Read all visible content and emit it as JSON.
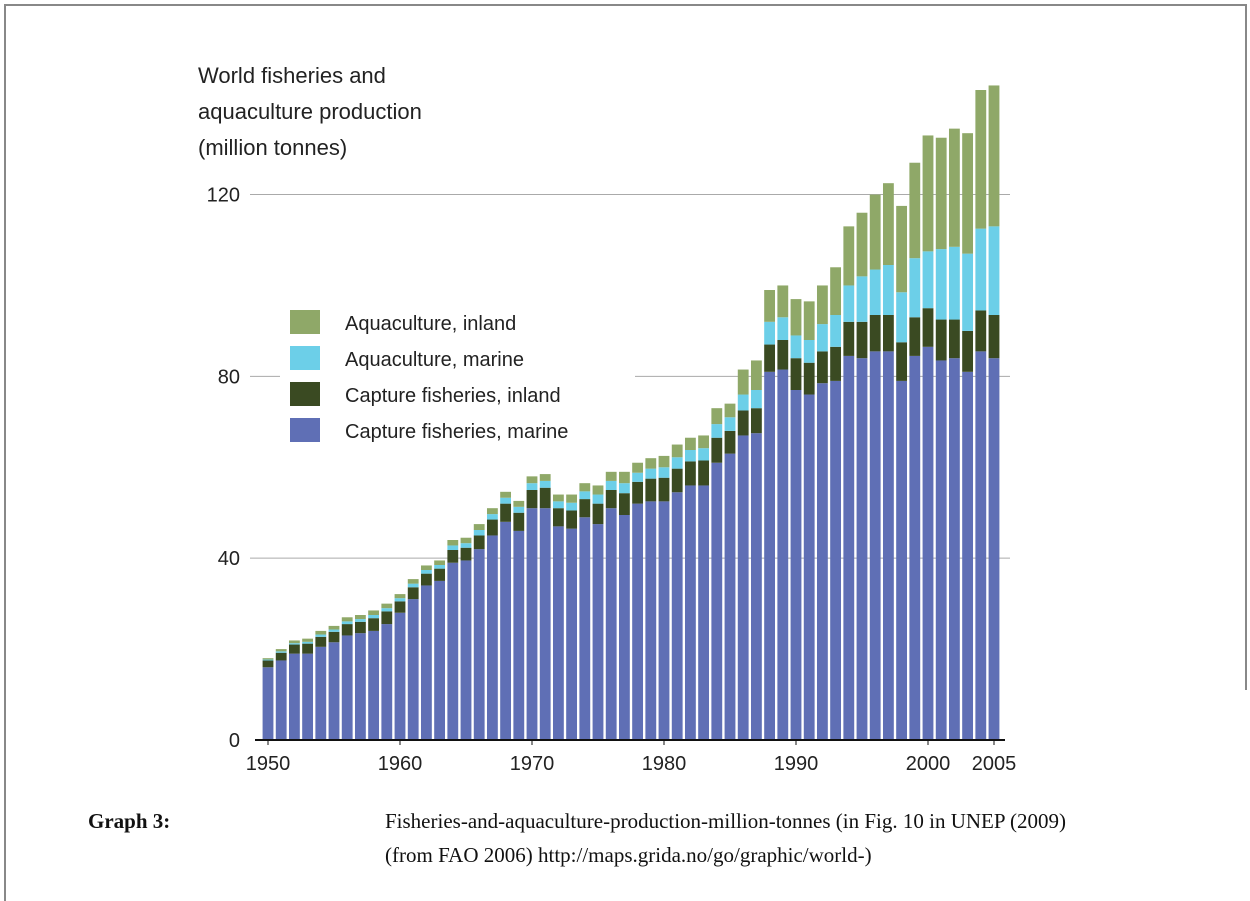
{
  "chart_data": {
    "type": "stacked_bar",
    "title": [
      "World fisheries and",
      "aquaculture production",
      "(million tonnes)"
    ],
    "x": [
      1950,
      1951,
      1952,
      1953,
      1954,
      1955,
      1956,
      1957,
      1958,
      1959,
      1960,
      1961,
      1962,
      1963,
      1964,
      1965,
      1966,
      1967,
      1968,
      1969,
      1970,
      1971,
      1972,
      1973,
      1974,
      1975,
      1976,
      1977,
      1978,
      1979,
      1980,
      1981,
      1982,
      1983,
      1984,
      1985,
      1986,
      1987,
      1988,
      1989,
      1990,
      1991,
      1992,
      1993,
      1994,
      1995,
      1996,
      1997,
      1998,
      1999,
      2000,
      2001,
      2002,
      2003,
      2004,
      2005
    ],
    "xlim": [
      1950,
      2005
    ],
    "xticks": [
      1950,
      1960,
      1970,
      1980,
      1990,
      2000,
      2005
    ],
    "ylim": [
      0,
      143
    ],
    "yticks": [
      0,
      40,
      80,
      120
    ],
    "grid": true,
    "series": [
      {
        "name": "Capture fisheries, marine",
        "color": "#5f6fb5",
        "values": [
          16,
          17.5,
          19,
          19,
          20.5,
          21.5,
          23,
          23.5,
          24,
          25.5,
          28,
          31,
          34,
          35,
          39,
          39.5,
          42,
          45,
          48,
          46,
          51,
          51,
          47,
          46.5,
          49,
          47.5,
          51,
          49.5,
          52,
          52.5,
          52.5,
          54.5,
          56,
          56,
          61,
          63,
          67,
          67.5,
          81,
          81.5,
          77,
          76,
          78.5,
          79,
          84.5,
          84,
          85.5,
          85.5,
          79,
          84.5,
          86.5,
          83.5,
          84,
          81,
          85.5,
          84
        ]
      },
      {
        "name": "Capture fisheries, inland",
        "color": "#3a4a22",
        "values": [
          1.5,
          1.7,
          2,
          2.2,
          2.2,
          2.3,
          2.5,
          2.5,
          2.8,
          2.8,
          2.5,
          2.6,
          2.6,
          2.7,
          2.8,
          2.8,
          3,
          3.5,
          4,
          4,
          4,
          4.5,
          4,
          4,
          4,
          4.5,
          4,
          4.8,
          4.8,
          5,
          5.2,
          5.2,
          5.3,
          5.5,
          5.5,
          5,
          5.5,
          5.5,
          6,
          6.5,
          7,
          7,
          7,
          7.5,
          7.5,
          8,
          8,
          8,
          8.5,
          8.5,
          8.5,
          9,
          8.5,
          9,
          9,
          9.5
        ]
      },
      {
        "name": "Aquaculture, marine",
        "color": "#6ccfe8",
        "values": [
          0.2,
          0.3,
          0.3,
          0.4,
          0.5,
          0.5,
          0.6,
          0.6,
          0.7,
          0.7,
          0.7,
          0.8,
          0.8,
          0.8,
          1,
          1,
          1.2,
          1.2,
          1.3,
          1.3,
          1.5,
          1.5,
          1.5,
          1.7,
          1.7,
          2,
          2,
          2.2,
          2,
          2.2,
          2.3,
          2.5,
          2.5,
          2.7,
          3,
          3,
          3.5,
          4,
          5,
          5,
          5,
          5,
          6,
          7,
          8,
          10,
          10,
          11,
          11,
          13,
          12.5,
          15.5,
          16,
          17,
          18,
          19.5
        ]
      },
      {
        "name": "Aquaculture, inland",
        "color": "#8fa868",
        "values": [
          0.3,
          0.5,
          0.6,
          0.7,
          0.8,
          0.8,
          0.9,
          0.9,
          1,
          1,
          0.9,
          1,
          1,
          1,
          1.2,
          1.2,
          1.3,
          1.3,
          1.3,
          1.3,
          1.5,
          1.5,
          1.5,
          1.8,
          1.8,
          2,
          2,
          2.5,
          2.2,
          2.3,
          2.5,
          2.8,
          2.7,
          2.8,
          3.5,
          3,
          5.5,
          6.5,
          7,
          7,
          8,
          8.5,
          8.5,
          10.5,
          13,
          14,
          16.5,
          18,
          19,
          21,
          25.5,
          24.5,
          26,
          26.5,
          30.5,
          31
        ]
      }
    ]
  },
  "caption": {
    "label": "Graph 3:",
    "lines": [
      "Fisheries-and-aquaculture-production-million-tonnes (in Fig. 10 in UNEP (2009)",
      "(from FAO 2006) http://maps.grida.no/go/graphic/world-)"
    ]
  }
}
